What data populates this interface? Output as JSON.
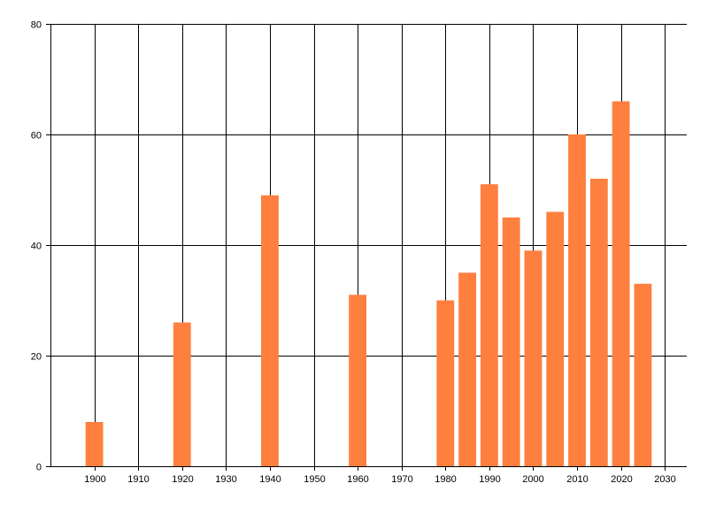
{
  "chart_data": {
    "type": "bar",
    "title": "",
    "xlabel": "",
    "ylabel": "",
    "x_ticks": [
      1900,
      1910,
      1920,
      1930,
      1940,
      1950,
      1960,
      1970,
      1980,
      1990,
      2000,
      2010,
      2020,
      2030
    ],
    "y_ticks": [
      0,
      20,
      40,
      60,
      80
    ],
    "xlim": [
      1890,
      2035
    ],
    "ylim": [
      0,
      80
    ],
    "grid": true,
    "legend": "none",
    "bar_color": "#FF7F3F",
    "bar_width_years": 4,
    "x": [
      1900,
      1920,
      1940,
      1960,
      1980,
      1985,
      1990,
      1995,
      2000,
      2005,
      2010,
      2015,
      2020,
      2025
    ],
    "values": [
      8,
      26,
      49,
      31,
      30,
      35,
      51,
      45,
      39,
      46,
      60,
      52,
      66,
      33
    ]
  }
}
